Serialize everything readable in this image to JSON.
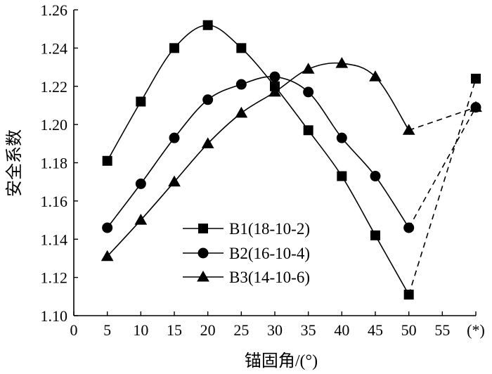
{
  "chart_data": {
    "type": "line",
    "xlabel": "锚固角/(°)",
    "ylabel": "安全系数",
    "xlim": [
      0,
      60
    ],
    "ylim": [
      1.1,
      1.26
    ],
    "x_ticks": [
      "0",
      "5",
      "10",
      "15",
      "20",
      "25",
      "30",
      "35",
      "40",
      "45",
      "50",
      "55",
      "(*)"
    ],
    "y_ticks": [
      "1.10",
      "1.12",
      "1.14",
      "1.16",
      "1.18",
      "1.20",
      "1.22",
      "1.24",
      "1.26"
    ],
    "special_point": {
      "label": "(*)",
      "x": 60
    },
    "legend_position": "bottom-center",
    "series": [
      {
        "name": "B1(18-10-2)",
        "marker": "square",
        "x": [
          5,
          10,
          15,
          20,
          25,
          30,
          35,
          40,
          45,
          50
        ],
        "values": [
          1.181,
          1.212,
          1.24,
          1.252,
          1.24,
          1.22,
          1.197,
          1.173,
          1.142,
          1.111
        ],
        "special_value": 1.224
      },
      {
        "name": "B2(16-10-4)",
        "marker": "circle",
        "x": [
          5,
          10,
          15,
          20,
          25,
          30,
          35,
          40,
          45,
          50
        ],
        "values": [
          1.146,
          1.169,
          1.193,
          1.213,
          1.221,
          1.225,
          1.217,
          1.193,
          1.173,
          1.146
        ],
        "special_value": 1.209
      },
      {
        "name": "B3(14-10-6)",
        "marker": "triangle",
        "x": [
          5,
          10,
          15,
          20,
          25,
          30,
          35,
          40,
          45,
          50
        ],
        "values": [
          1.131,
          1.15,
          1.17,
          1.19,
          1.206,
          1.217,
          1.229,
          1.232,
          1.225,
          1.197
        ],
        "special_value": 1.209
      }
    ]
  }
}
